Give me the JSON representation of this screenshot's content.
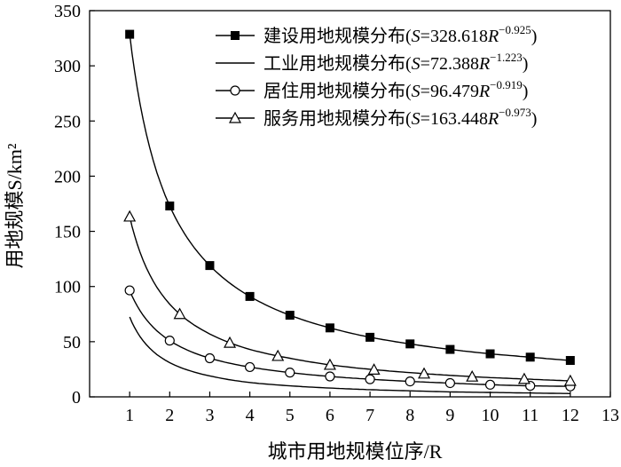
{
  "chart_data": {
    "type": "line",
    "xlabel": "城市用地规模位序/R",
    "ylabel": "用地规模S/km²",
    "xlim": [
      0,
      13
    ],
    "ylim": [
      0,
      350
    ],
    "xticks": [
      1,
      2,
      3,
      4,
      5,
      6,
      7,
      8,
      9,
      10,
      11,
      12,
      13
    ],
    "yticks": [
      0,
      50,
      100,
      150,
      200,
      250,
      300,
      350
    ],
    "grid": false,
    "legend_position": "top-right",
    "series": [
      {
        "name": "建设用地规模分布(S=328.618R−0.925)",
        "legend_main": "建设用地规模分布(",
        "legend_var": "S",
        "legend_eq": "=328.618",
        "legend_var2": "R",
        "legend_exp": "−0.925",
        "legend_close": ")",
        "marker": "square-filled",
        "x": [
          1,
          2,
          3,
          4,
          5,
          6,
          7,
          8,
          9,
          10,
          11,
          12
        ],
        "y": [
          328.6,
          173,
          119,
          91,
          74,
          62.5,
          54,
          48,
          43,
          39,
          36,
          33
        ],
        "marker_x": [
          1,
          2,
          3,
          4,
          5,
          6,
          7,
          8,
          9,
          10,
          11,
          12
        ]
      },
      {
        "name": "工业用地规模分布(S=72.388R−1.223)",
        "legend_main": "工业用地规模分布(",
        "legend_var": "S",
        "legend_eq": "=72.388",
        "legend_var2": "R",
        "legend_exp": "−1.223",
        "legend_close": ")",
        "marker": "none",
        "x": [
          1,
          2,
          3,
          4,
          5,
          6,
          7,
          8,
          9,
          10,
          11,
          12
        ],
        "y": [
          72.4,
          31,
          19,
          13,
          10,
          8,
          6.5,
          5.5,
          4.5,
          4,
          3.5,
          3
        ],
        "marker_x": []
      },
      {
        "name": "居住用地规模分布(S=96.479R−0.919)",
        "legend_main": "居住用地规模分布(",
        "legend_var": "S",
        "legend_eq": "=96.479",
        "legend_var2": "R",
        "legend_exp": "−0.919",
        "legend_close": ")",
        "marker": "circle-open",
        "x": [
          1,
          2,
          3,
          4,
          5,
          6,
          7,
          8,
          9,
          10,
          11,
          12
        ],
        "y": [
          96.5,
          51,
          35,
          27,
          22,
          18.5,
          16,
          14,
          12.5,
          11,
          10,
          9.5
        ],
        "marker_x": [
          1,
          2,
          3,
          4,
          5,
          6,
          7,
          8,
          9,
          10,
          11,
          12
        ]
      },
      {
        "name": "服务用地规模分布(S=163.448R−0.973)",
        "legend_main": "服务用地规模分布(",
        "legend_var": "S",
        "legend_eq": "=163.448",
        "legend_var2": "R",
        "legend_exp": "−0.973",
        "legend_close": ")",
        "marker": "triangle-open",
        "x": [
          1,
          2,
          3,
          4,
          5,
          6,
          7,
          8,
          9,
          10,
          11,
          12
        ],
        "y": [
          163.4,
          84,
          57,
          43,
          35,
          29,
          25,
          22,
          19.5,
          17.5,
          16,
          14.5
        ],
        "marker_x": [
          1,
          2.25,
          3.5,
          4.7,
          6,
          7.1,
          8.35,
          9.55,
          10.85,
          12
        ]
      }
    ]
  }
}
